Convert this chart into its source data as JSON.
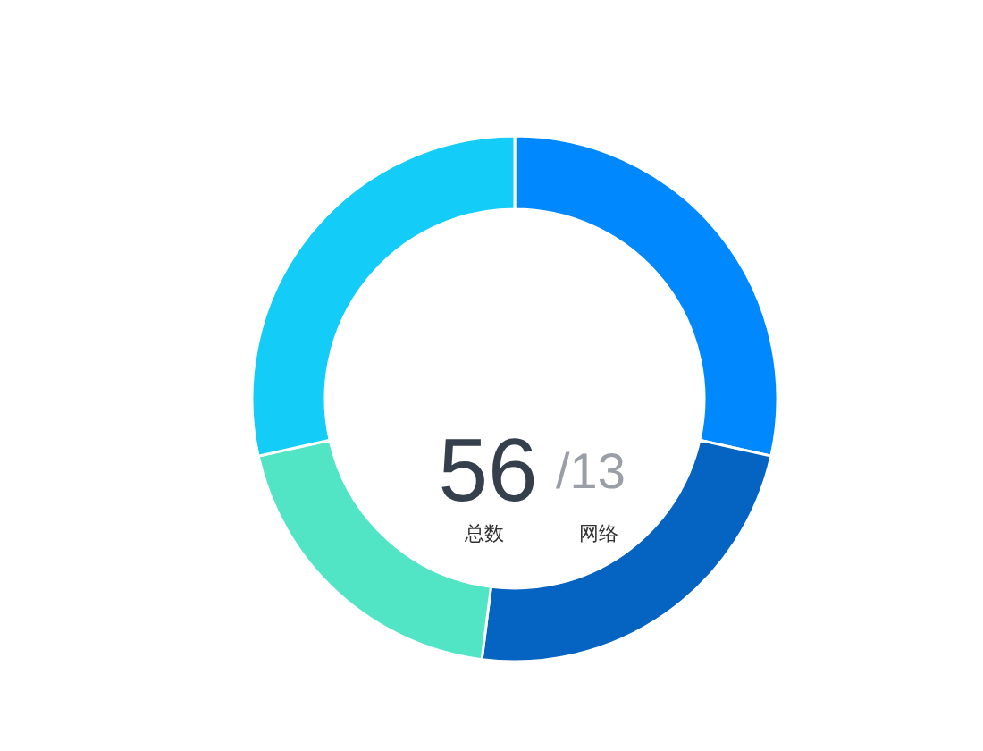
{
  "chart_data": {
    "type": "donut",
    "categories": [
      null,
      null,
      null,
      null
    ],
    "values": [
      28.5,
      23.5,
      19.5,
      28.5
    ],
    "colors": [
      "#0088ff",
      "#0563c1",
      "#52e5c5",
      "#13ccf7"
    ],
    "annotations": [
      "56",
      "/13",
      "总数",
      "网络"
    ],
    "legend": false
  }
}
